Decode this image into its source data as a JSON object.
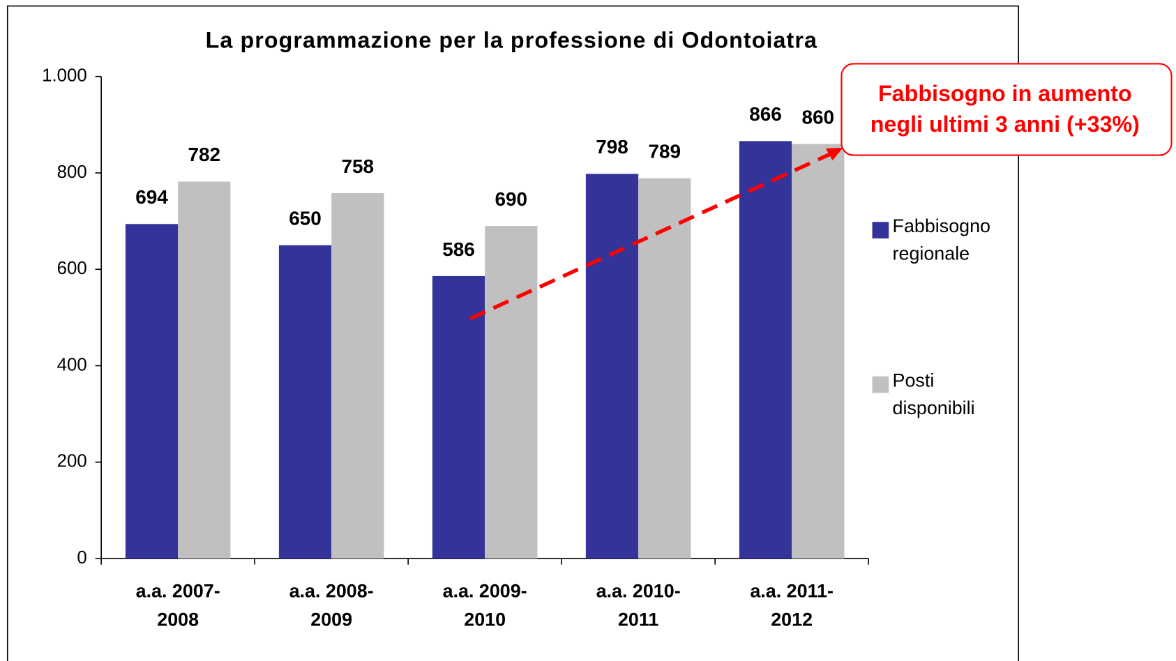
{
  "chart_data": {
    "type": "bar",
    "title": "La programmazione per la professione di Odontoiatra",
    "categories": [
      [
        "a.a. 2007-",
        "2008"
      ],
      [
        "a.a. 2008-",
        "2009"
      ],
      [
        "a.a. 2009-",
        "2010"
      ],
      [
        "a.a. 2010-",
        "2011"
      ],
      [
        "a.a. 2011-",
        "2012"
      ]
    ],
    "series": [
      {
        "name": "Fabbisogno regionale",
        "color": "#333399",
        "values": [
          694,
          650,
          586,
          798,
          866
        ]
      },
      {
        "name": "Posti disponibili",
        "color": "#c0c0c0",
        "values": [
          782,
          758,
          690,
          789,
          860
        ]
      }
    ],
    "ylim": [
      0,
      1000
    ],
    "yticks": [
      0,
      200,
      400,
      600,
      800,
      {
        "value": 1000,
        "label": "1.000"
      }
    ],
    "legend": "right",
    "annotation": [
      "Fabbisogno in aumento",
      "negli ultimi 3 anni (+33%)"
    ]
  }
}
